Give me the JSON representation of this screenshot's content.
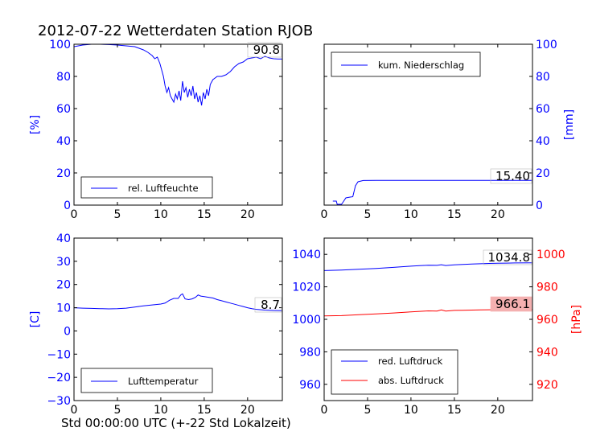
{
  "figure": {
    "title": "2012-07-22 Wetterdaten Station RJOB",
    "x_caption": "Std 00:00:00 UTC (+-22 Std Lokalzeit)"
  },
  "colors": {
    "blue": "#0000ff",
    "red": "#ff0000",
    "black": "#000000",
    "annotation_bg_red": "#f4b0b0"
  },
  "chart_data": [
    {
      "id": "humidity",
      "type": "line",
      "ylabel": "[%]",
      "xlim": [
        0,
        24
      ],
      "ylim": [
        0,
        100
      ],
      "xticks": [
        0,
        5,
        10,
        15,
        20
      ],
      "yticks": [
        0,
        20,
        40,
        60,
        80,
        100
      ],
      "legend": "bottom-left",
      "series": [
        {
          "name": "rel. Luftfeuchte",
          "color": "#0000ff",
          "points": [
            [
              0,
              98.5
            ],
            [
              0.5,
              99
            ],
            [
              1,
              99.5
            ],
            [
              2,
              100
            ],
            [
              3,
              100
            ],
            [
              4,
              99.8
            ],
            [
              5,
              99.5
            ],
            [
              6,
              99
            ],
            [
              7,
              98.5
            ],
            [
              7.5,
              97.5
            ],
            [
              8,
              96.5
            ],
            [
              8.5,
              95
            ],
            [
              9,
              93
            ],
            [
              9.3,
              91
            ],
            [
              9.6,
              92
            ],
            [
              9.9,
              88
            ],
            [
              10.1,
              84
            ],
            [
              10.3,
              80
            ],
            [
              10.5,
              74
            ],
            [
              10.7,
              70
            ],
            [
              10.9,
              73
            ],
            [
              11.1,
              68
            ],
            [
              11.3,
              66
            ],
            [
              11.5,
              64
            ],
            [
              11.7,
              69
            ],
            [
              11.9,
              66
            ],
            [
              12.1,
              71
            ],
            [
              12.3,
              65
            ],
            [
              12.5,
              77
            ],
            [
              12.7,
              70
            ],
            [
              12.9,
              73
            ],
            [
              13.1,
              67
            ],
            [
              13.3,
              72
            ],
            [
              13.5,
              68
            ],
            [
              13.7,
              74
            ],
            [
              13.9,
              66
            ],
            [
              14.1,
              70
            ],
            [
              14.3,
              64
            ],
            [
              14.5,
              68
            ],
            [
              14.7,
              62
            ],
            [
              14.9,
              70
            ],
            [
              15.1,
              66
            ],
            [
              15.3,
              72
            ],
            [
              15.5,
              68
            ],
            [
              15.7,
              75
            ],
            [
              16,
              78
            ],
            [
              16.5,
              80
            ],
            [
              17,
              80
            ],
            [
              17.5,
              81
            ],
            [
              18,
              83
            ],
            [
              18.5,
              86
            ],
            [
              19,
              88
            ],
            [
              19.5,
              89
            ],
            [
              20,
              91
            ],
            [
              20.5,
              91.5
            ],
            [
              21,
              92
            ],
            [
              21.5,
              91
            ],
            [
              22,
              92.5
            ],
            [
              22.5,
              91.5
            ],
            [
              23,
              91
            ],
            [
              23.5,
              90.8
            ],
            [
              24,
              90.8
            ]
          ]
        }
      ],
      "annotation": "90.8"
    },
    {
      "id": "precipitation",
      "type": "line",
      "ylabel": "[mm]",
      "xlim": [
        0,
        24
      ],
      "ylim": [
        0,
        100
      ],
      "xticks": [
        0,
        5,
        10,
        15,
        20
      ],
      "yticks": [
        0,
        20,
        40,
        60,
        80,
        100
      ],
      "legend": "top-left",
      "series": [
        {
          "name": "kum. Niederschlag",
          "color": "#0000ff",
          "points": [
            [
              1,
              2.5
            ],
            [
              1.4,
              2.5
            ],
            [
              1.5,
              0.5
            ],
            [
              2.0,
              0.5
            ],
            [
              2.2,
              2.0
            ],
            [
              2.5,
              4.5
            ],
            [
              3.0,
              5.0
            ],
            [
              3.3,
              5.2
            ],
            [
              3.6,
              12
            ],
            [
              3.9,
              14.5
            ],
            [
              4.5,
              15.3
            ],
            [
              6,
              15.4
            ],
            [
              10,
              15.4
            ],
            [
              15,
              15.4
            ],
            [
              20,
              15.4
            ],
            [
              24,
              15.4
            ]
          ]
        }
      ],
      "annotation": "15.40"
    },
    {
      "id": "temperature",
      "type": "line",
      "ylabel": "[C]",
      "xlim": [
        0,
        24
      ],
      "ylim": [
        -30,
        40
      ],
      "xticks": [
        0,
        5,
        10,
        15,
        20
      ],
      "yticks": [
        -30,
        -20,
        -10,
        0,
        10,
        20,
        30,
        40
      ],
      "legend": "bottom-left",
      "series": [
        {
          "name": "Lufttemperatur",
          "color": "#0000ff",
          "points": [
            [
              0,
              10
            ],
            [
              1,
              9.8
            ],
            [
              2,
              9.7
            ],
            [
              3,
              9.6
            ],
            [
              4,
              9.5
            ],
            [
              5,
              9.6
            ],
            [
              6,
              9.8
            ],
            [
              7,
              10.3
            ],
            [
              8,
              10.8
            ],
            [
              9,
              11.2
            ],
            [
              10,
              11.6
            ],
            [
              10.5,
              12
            ],
            [
              11,
              13.2
            ],
            [
              11.5,
              14
            ],
            [
              12,
              14
            ],
            [
              12.3,
              15.5
            ],
            [
              12.5,
              16
            ],
            [
              12.8,
              13.8
            ],
            [
              13.2,
              13.5
            ],
            [
              13.6,
              13.8
            ],
            [
              14,
              14.5
            ],
            [
              14.3,
              15.5
            ],
            [
              14.6,
              15
            ],
            [
              15,
              14.8
            ],
            [
              15.5,
              14.5
            ],
            [
              16,
              14.2
            ],
            [
              16.5,
              13.5
            ],
            [
              17,
              13
            ],
            [
              17.5,
              12.5
            ],
            [
              18,
              12
            ],
            [
              18.5,
              11.5
            ],
            [
              19,
              11
            ],
            [
              19.5,
              10.5
            ],
            [
              20,
              10
            ],
            [
              20.5,
              9.6
            ],
            [
              21,
              9.3
            ],
            [
              22,
              9.0
            ],
            [
              23,
              8.8
            ],
            [
              24,
              8.7
            ]
          ]
        }
      ],
      "annotation": "8.7"
    },
    {
      "id": "pressure",
      "type": "line",
      "ylabel": "[hPa]",
      "xlim": [
        0,
        24
      ],
      "ylim": [
        950,
        1050
      ],
      "ylim_right": [
        910,
        1010
      ],
      "xticks": [
        0,
        5,
        10,
        15,
        20
      ],
      "yticks": [
        960,
        980,
        1000,
        1020,
        1040
      ],
      "yticks_right": [
        920,
        940,
        960,
        980,
        1000
      ],
      "legend": "bottom-left",
      "series": [
        {
          "name": "red. Luftdruck",
          "color": "#0000ff",
          "axis": "left",
          "points": [
            [
              0,
              1030
            ],
            [
              2,
              1030.3
            ],
            [
              4,
              1030.8
            ],
            [
              6,
              1031.3
            ],
            [
              8,
              1032
            ],
            [
              10,
              1032.7
            ],
            [
              11,
              1033
            ],
            [
              12,
              1033.3
            ],
            [
              13,
              1033.2
            ],
            [
              13.5,
              1033.6
            ],
            [
              14,
              1033.1
            ],
            [
              15,
              1033.5
            ],
            [
              16,
              1033.8
            ],
            [
              17,
              1034
            ],
            [
              18,
              1034.2
            ],
            [
              19,
              1034.4
            ],
            [
              20,
              1034.5
            ],
            [
              21,
              1034.6
            ],
            [
              22,
              1034.7
            ],
            [
              24,
              1034.8
            ]
          ]
        },
        {
          "name": "abs. Luftdruck",
          "color": "#ff0000",
          "axis": "right",
          "points": [
            [
              0,
              962.1
            ],
            [
              2,
              962.3
            ],
            [
              4,
              962.8
            ],
            [
              6,
              963.3
            ],
            [
              8,
              963.9
            ],
            [
              10,
              964.6
            ],
            [
              11,
              964.9
            ],
            [
              12,
              965.2
            ],
            [
              13,
              965.1
            ],
            [
              13.5,
              965.8
            ],
            [
              14,
              965.1
            ],
            [
              15,
              965.5
            ],
            [
              16,
              965.6
            ],
            [
              17,
              965.7
            ],
            [
              18,
              965.8
            ],
            [
              19,
              965.9
            ],
            [
              20,
              966
            ],
            [
              22,
              966.1
            ],
            [
              24,
              966.1
            ]
          ]
        }
      ],
      "annotation": "1034.8",
      "annotation_right": "966.1"
    }
  ]
}
